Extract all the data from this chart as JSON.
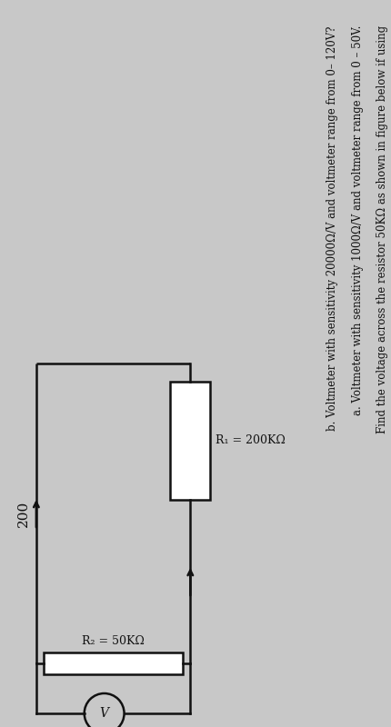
{
  "title_line1": "Find the voltage across the resistor 50KΩ as shown in figure below if using",
  "title_line2a": "a. Voltmeter with sensitivity 1000Ω/V and voltmeter range from 0 – 50V.",
  "title_line2b": "b. Voltmeter with sensitivity 20000Ω/V and voltmeter range from 0– 120V?",
  "R1_label": "R₁ = 200KΩ",
  "R2_label": "R₂ = 50KΩ",
  "voltage_label": "200",
  "voltmeter_label": "V",
  "bg_color": "#c8c8c8",
  "text_color": "#111111",
  "circuit_color": "#111111",
  "lw": 1.8,
  "text_fontsize": 8.5,
  "circuit_fontsize": 9.0
}
